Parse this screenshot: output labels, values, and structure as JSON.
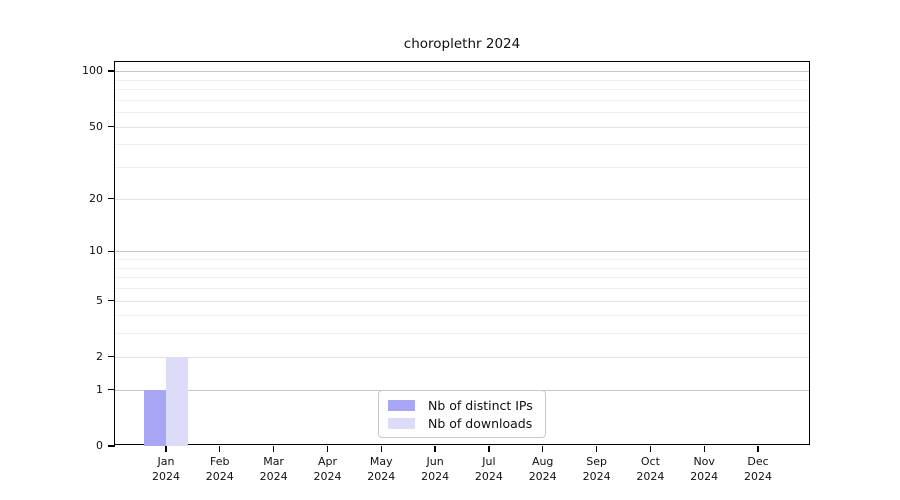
{
  "title": "choroplethr 2024",
  "chart_data": {
    "type": "bar",
    "title": "choroplethr 2024",
    "categories": [
      "Jan 2024",
      "Feb 2024",
      "Mar 2024",
      "Apr 2024",
      "May 2024",
      "Jun 2024",
      "Jul 2024",
      "Aug 2024",
      "Sep 2024",
      "Oct 2024",
      "Nov 2024",
      "Dec 2024"
    ],
    "series": [
      {
        "name": "Nb of distinct IPs",
        "color": "#a6a6f5",
        "values": [
          1,
          0,
          0,
          0,
          0,
          0,
          0,
          0,
          0,
          0,
          0,
          0
        ]
      },
      {
        "name": "Nb of downloads",
        "color": "#dcdcf9",
        "values": [
          2,
          0,
          0,
          0,
          0,
          0,
          0,
          0,
          0,
          0,
          0,
          0
        ]
      }
    ],
    "xlabel": "",
    "ylabel": "",
    "yscale": "log1p",
    "ylim": [
      0,
      112
    ],
    "yticks": [
      0,
      1,
      2,
      5,
      10,
      20,
      50,
      100
    ],
    "decade_yticks": [
      1,
      10,
      100
    ],
    "minor_yticks": [
      3,
      4,
      6,
      7,
      8,
      9,
      30,
      40,
      60,
      70,
      80,
      90
    ],
    "grid": true,
    "legend_position": "bottom-center"
  }
}
